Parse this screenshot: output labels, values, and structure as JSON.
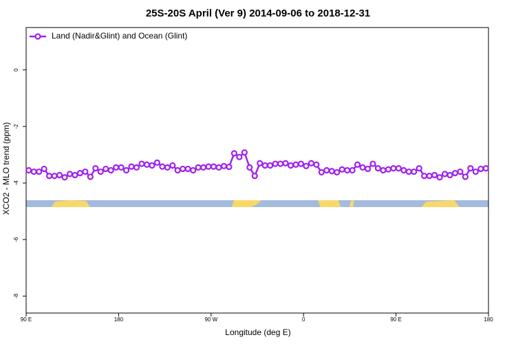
{
  "chart_data": {
    "type": "line",
    "title": "25S-20S April (Ver 9)   2014-09-06 to 2018-12-31",
    "x_label": "Longitude (deg E)",
    "y_label": "XCO2 - MLO trend (ppm)",
    "x": [
      92.5,
      97.5,
      102.5,
      107.5,
      112.5,
      117.5,
      122.5,
      127.5,
      132.5,
      137.5,
      142.5,
      147.5,
      152.5,
      157.5,
      162.5,
      167.5,
      172.5,
      177.5,
      182.5,
      187.5,
      192.5,
      197.5,
      202.5,
      207.5,
      212.5,
      217.5,
      222.5,
      227.5,
      232.5,
      237.5,
      242.5,
      247.5,
      252.5,
      257.5,
      262.5,
      267.5,
      272.5,
      277.5,
      282.5,
      287.5,
      292.5,
      297.5,
      302.5,
      307.5,
      312.5,
      317.5,
      322.5,
      327.5,
      332.5,
      337.5,
      342.5,
      347.5,
      352.5,
      357.5,
      362.5,
      367.5,
      372.5,
      377.5,
      382.5,
      387.5,
      392.5,
      397.5,
      402.5,
      407.5,
      412.5,
      417.5,
      422.5,
      427.5,
      432.5,
      437.5,
      442.5,
      447.5,
      452.5,
      457.5,
      462.5,
      467.5,
      472.5,
      477.5,
      482.5,
      487.5,
      492.5,
      497.5,
      502.5,
      507.5,
      512.5,
      517.5,
      522.5,
      527.5,
      532.5,
      537.5
    ],
    "series": [
      {
        "name": "Land (Nadir&Glint) and Ocean (Glint)",
        "color": "#a020f0",
        "values": [
          -3.55,
          -3.6,
          -3.6,
          -3.5,
          -3.75,
          -3.75,
          -3.72,
          -3.8,
          -3.68,
          -3.72,
          -3.65,
          -3.6,
          -3.78,
          -3.48,
          -3.6,
          -3.5,
          -3.55,
          -3.45,
          -3.45,
          -3.55,
          -3.42,
          -3.45,
          -3.32,
          -3.35,
          -3.38,
          -3.28,
          -3.42,
          -3.45,
          -3.38,
          -3.55,
          -3.5,
          -3.5,
          -3.55,
          -3.45,
          -3.45,
          -3.42,
          -3.42,
          -3.45,
          -3.4,
          -3.43,
          -2.95,
          -3.08,
          -2.92,
          -3.45,
          -3.75,
          -3.3,
          -3.38,
          -3.38,
          -3.32,
          -3.32,
          -3.3,
          -3.38,
          -3.35,
          -3.32,
          -3.4,
          -3.3,
          -3.35,
          -3.62,
          -3.55,
          -3.58,
          -3.62,
          -3.52,
          -3.55,
          -3.55,
          -3.35,
          -3.45,
          -3.5,
          -3.32,
          -3.48,
          -3.55,
          -3.52,
          -3.48,
          -3.48,
          -3.55,
          -3.6,
          -3.6,
          -3.48,
          -3.75,
          -3.75,
          -3.72,
          -3.8,
          -3.68,
          -3.72,
          -3.65,
          -3.6,
          -3.78,
          -3.48,
          -3.6,
          -3.5,
          -3.48
        ]
      }
    ],
    "xlim": [
      90,
      540
    ],
    "xticks": [
      {
        "value": 90,
        "label": "90 E"
      },
      {
        "value": 180,
        "label": "180"
      },
      {
        "value": 270,
        "label": "90 W"
      },
      {
        "value": 360,
        "label": "0"
      },
      {
        "value": 450,
        "label": "90 E"
      },
      {
        "value": 540,
        "label": "180"
      }
    ],
    "ylim": [
      -8.6,
      1.5
    ],
    "yticks": [
      0,
      -2,
      -4,
      -6,
      -8
    ],
    "legend": "top-left"
  }
}
